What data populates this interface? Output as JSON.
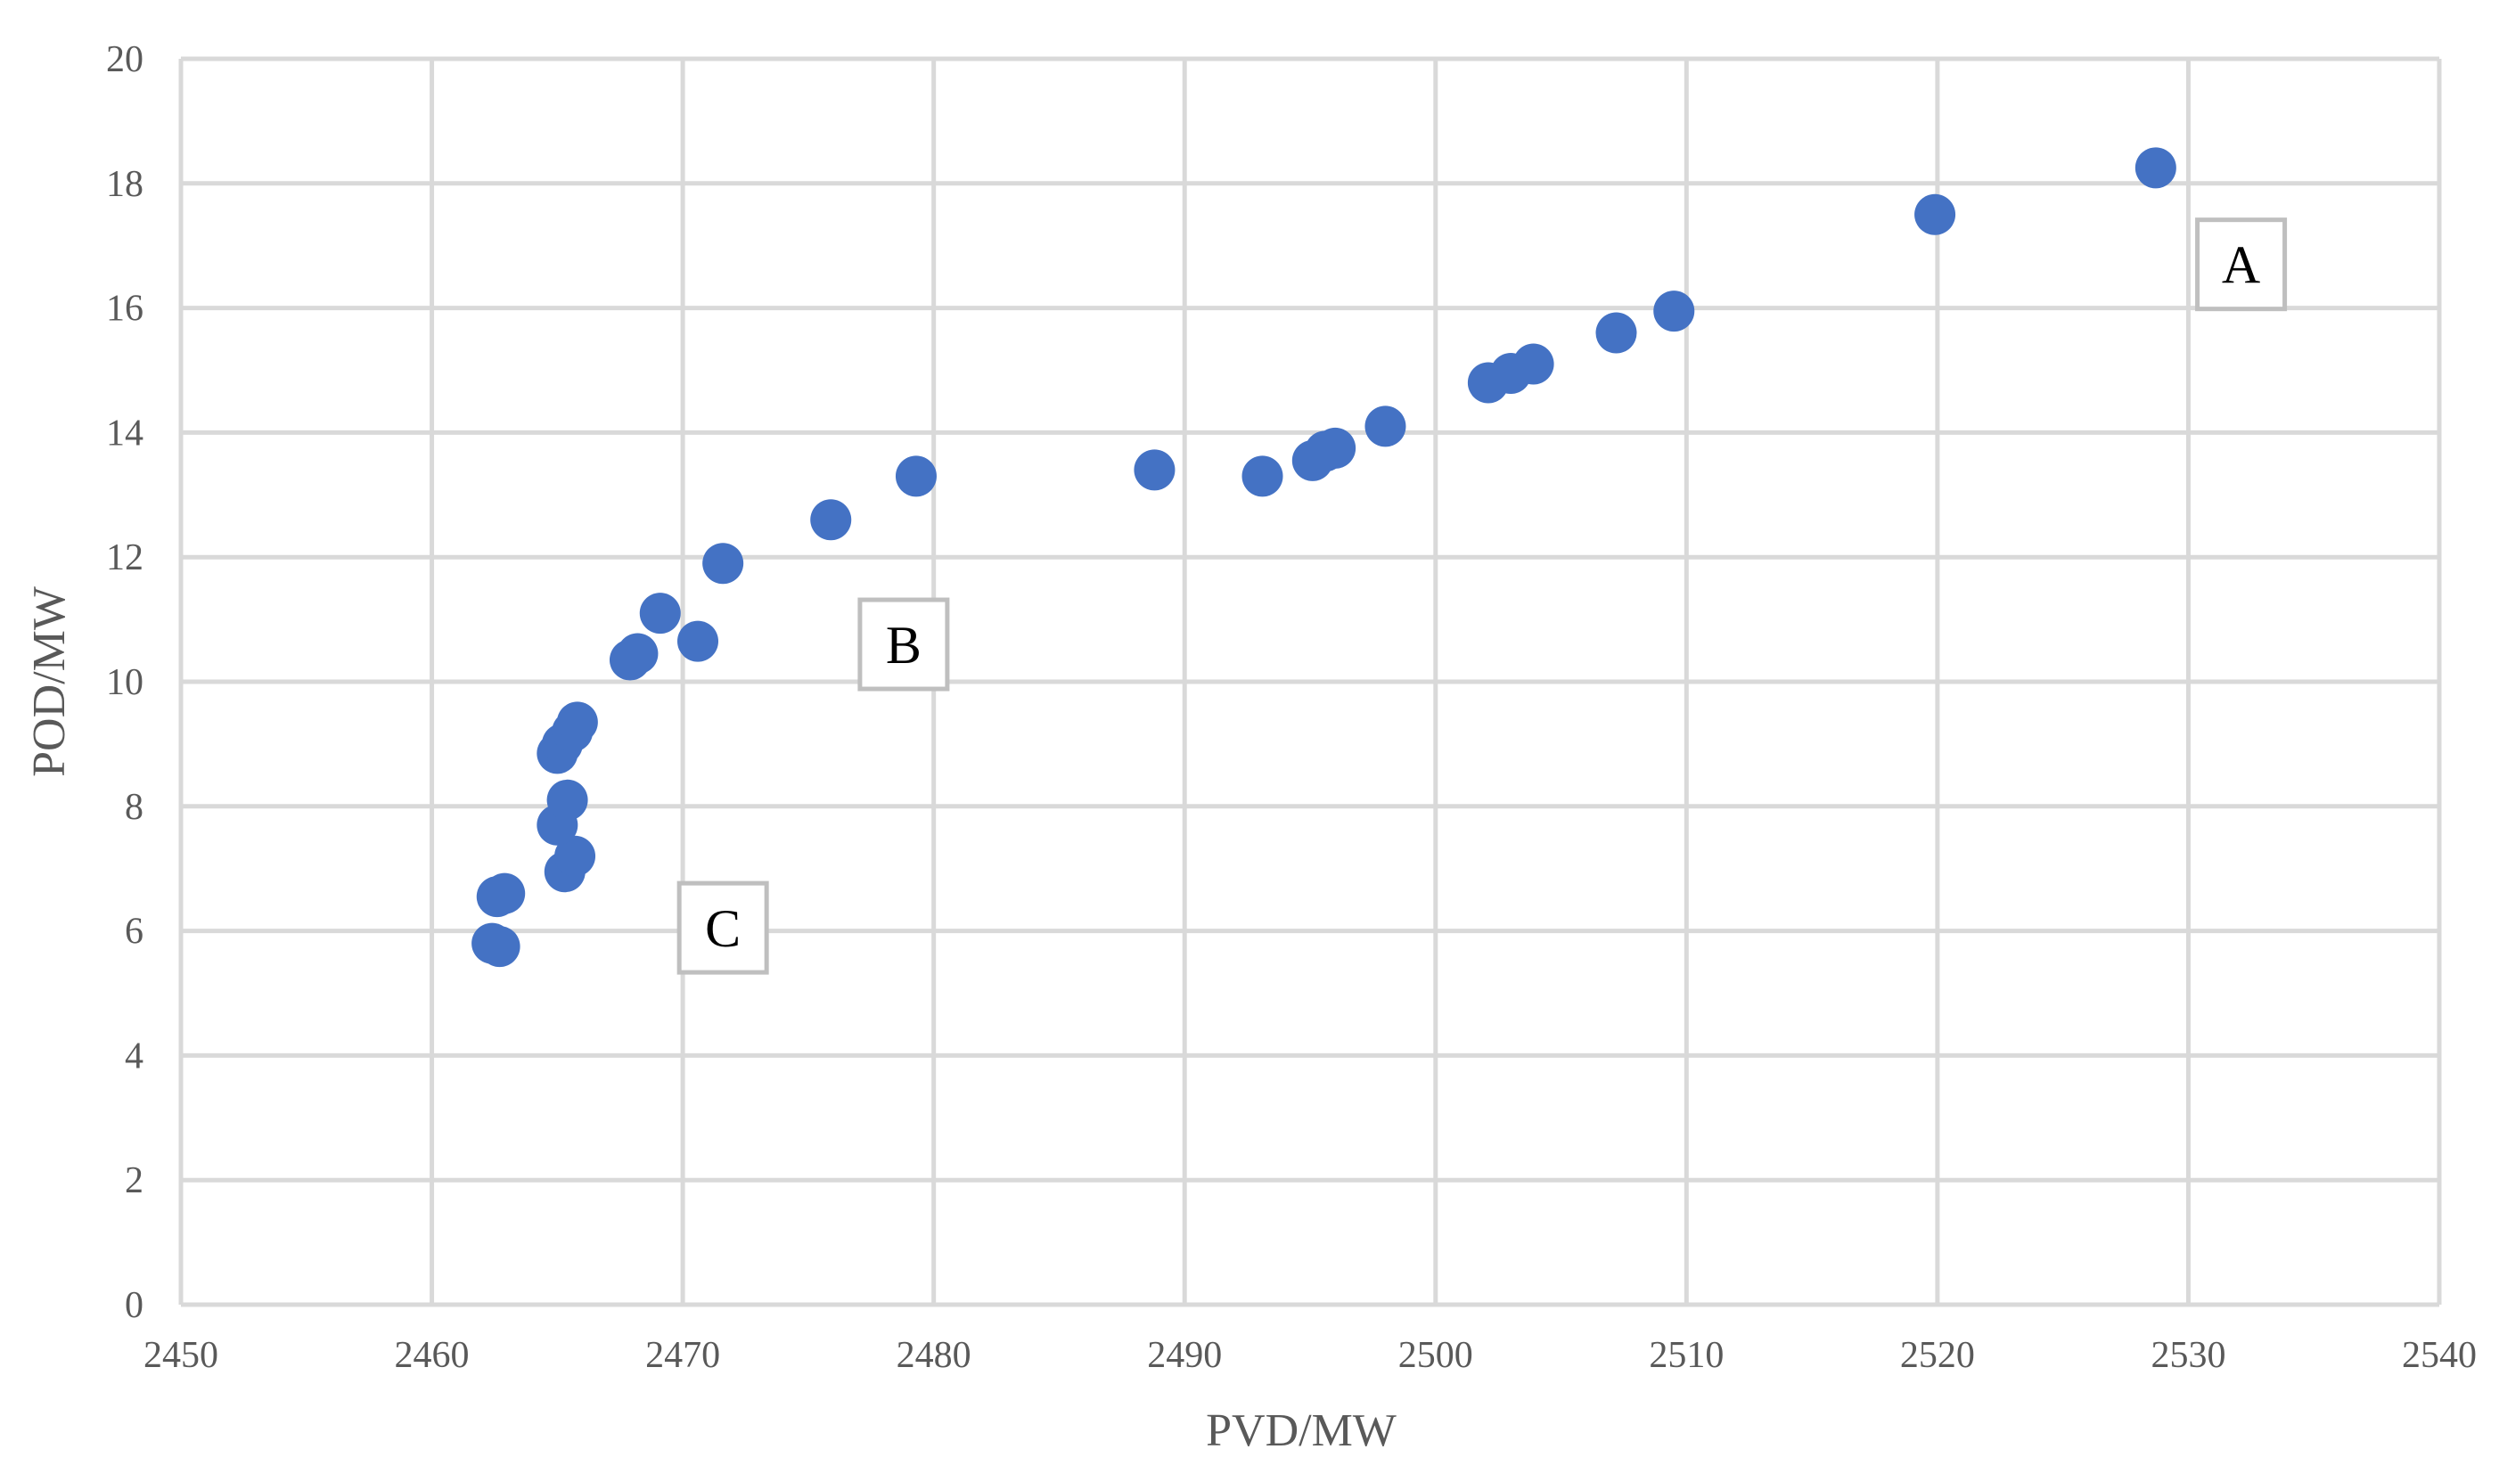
{
  "chart_data": {
    "type": "scatter",
    "xlabel": "PVD/MW",
    "ylabel": "POD/MW",
    "xlim": [
      2450,
      2540
    ],
    "ylim": [
      0,
      20
    ],
    "xticks": [
      "2450",
      "2460",
      "2470",
      "2480",
      "2490",
      "2500",
      "2510",
      "2520",
      "2530",
      "2540"
    ],
    "yticks": [
      "0",
      "2",
      "4",
      "6",
      "8",
      "10",
      "12",
      "14",
      "16",
      "18",
      "20"
    ],
    "grid": true,
    "legend": "none",
    "colors": {
      "points": "#4472C4",
      "grid": "#d9d9d9"
    },
    "points": [
      {
        "x": 2462.4,
        "y": 5.8
      },
      {
        "x": 2462.7,
        "y": 5.75
      },
      {
        "x": 2462.6,
        "y": 6.55
      },
      {
        "x": 2462.9,
        "y": 6.6
      },
      {
        "x": 2465.3,
        "y": 6.95
      },
      {
        "x": 2465.7,
        "y": 7.2
      },
      {
        "x": 2465.0,
        "y": 7.7
      },
      {
        "x": 2465.4,
        "y": 8.1
      },
      {
        "x": 2465.0,
        "y": 8.85
      },
      {
        "x": 2465.2,
        "y": 9.0
      },
      {
        "x": 2465.6,
        "y": 9.2
      },
      {
        "x": 2465.8,
        "y": 9.35
      },
      {
        "x": 2467.9,
        "y": 10.35
      },
      {
        "x": 2468.2,
        "y": 10.45
      },
      {
        "x": 2469.1,
        "y": 11.1
      },
      {
        "x": 2470.6,
        "y": 10.65
      },
      {
        "x": 2471.6,
        "y": 11.9
      },
      {
        "x": 2475.9,
        "y": 12.6
      },
      {
        "x": 2479.3,
        "y": 13.3
      },
      {
        "x": 2488.8,
        "y": 13.4
      },
      {
        "x": 2493.1,
        "y": 13.3
      },
      {
        "x": 2495.1,
        "y": 13.55
      },
      {
        "x": 2495.6,
        "y": 13.7
      },
      {
        "x": 2496.0,
        "y": 13.75
      },
      {
        "x": 2498.0,
        "y": 14.1
      },
      {
        "x": 2502.1,
        "y": 14.8
      },
      {
        "x": 2503.0,
        "y": 14.95
      },
      {
        "x": 2503.9,
        "y": 15.1
      },
      {
        "x": 2507.2,
        "y": 15.6
      },
      {
        "x": 2509.5,
        "y": 15.95
      },
      {
        "x": 2519.9,
        "y": 17.5
      },
      {
        "x": 2528.7,
        "y": 18.25
      }
    ],
    "annotations": [
      {
        "text": "A",
        "x": 2532.1,
        "y": 16.7
      },
      {
        "text": "B",
        "x": 2478.8,
        "y": 10.6
      },
      {
        "text": "C",
        "x": 2471.6,
        "y": 6.05
      }
    ]
  }
}
